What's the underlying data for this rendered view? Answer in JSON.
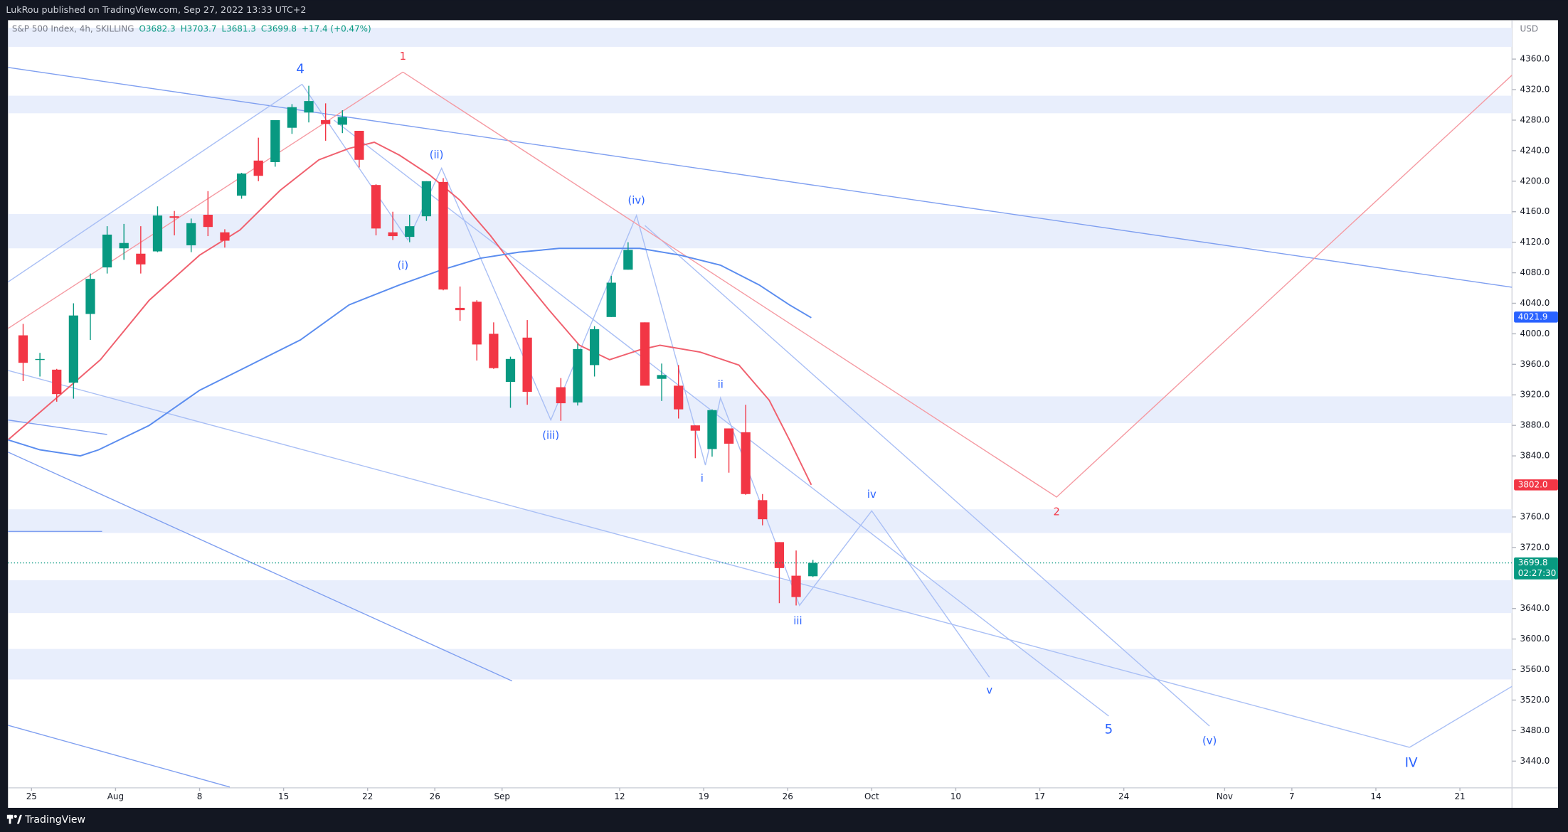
{
  "chart_data": {
    "type": "candlestick",
    "published": "LukRou published on TradingView.com, Sep 27, 2022 13:33 UTC+2",
    "symbol": "S&P 500 Index, 4h, SKILLING",
    "ohlc": [
      "O3682.3",
      "H3703.7",
      "L3681.3",
      "C3699.8"
    ],
    "change": "+17.4 (+0.47%)",
    "currency": "USD",
    "brand": "TradingView",
    "up_color": "#089981",
    "down_color": "#f23645",
    "xlim": [
      -1.4,
      88.1
    ],
    "ylim": [
      3405,
      4411
    ],
    "xticks": [
      {
        "value": 0,
        "label": "25"
      },
      {
        "value": 5,
        "label": "Aug"
      },
      {
        "value": 10,
        "label": "8"
      },
      {
        "value": 15,
        "label": "15"
      },
      {
        "value": 20,
        "label": "22"
      },
      {
        "value": 24,
        "label": "26"
      },
      {
        "value": 28,
        "label": "Sep"
      },
      {
        "value": 35,
        "label": "12"
      },
      {
        "value": 40,
        "label": "19"
      },
      {
        "value": 45,
        "label": "26"
      },
      {
        "value": 50,
        "label": "Oct"
      },
      {
        "value": 55,
        "label": "10"
      },
      {
        "value": 60,
        "label": "17"
      },
      {
        "value": 65,
        "label": "24"
      },
      {
        "value": 71,
        "label": "Nov"
      },
      {
        "value": 75,
        "label": "7"
      },
      {
        "value": 80,
        "label": "14"
      },
      {
        "value": 85,
        "label": "21"
      }
    ],
    "yticks": [
      {
        "value": 3440,
        "label": "3440.0"
      },
      {
        "value": 3480,
        "label": "3480.0"
      },
      {
        "value": 3520,
        "label": "3520.0"
      },
      {
        "value": 3560,
        "label": "3560.0"
      },
      {
        "value": 3600,
        "label": "3600.0"
      },
      {
        "value": 3640,
        "label": "3640.0"
      },
      {
        "value": 3720,
        "label": "3720.0"
      },
      {
        "value": 3760,
        "label": "3760.0"
      },
      {
        "value": 3840,
        "label": "3840.0"
      },
      {
        "value": 3880,
        "label": "3880.0"
      },
      {
        "value": 3920,
        "label": "3920.0"
      },
      {
        "value": 3960,
        "label": "3960.0"
      },
      {
        "value": 4000,
        "label": "4000.0"
      },
      {
        "value": 4040,
        "label": "4040.0"
      },
      {
        "value": 4080,
        "label": "4080.0"
      },
      {
        "value": 4120,
        "label": "4120.0"
      },
      {
        "value": 4160,
        "label": "4160.0"
      },
      {
        "value": 4200,
        "label": "4200.0"
      },
      {
        "value": 4240,
        "label": "4240.0"
      },
      {
        "value": 4280,
        "label": "4280.0"
      },
      {
        "value": 4320,
        "label": "4320.0"
      },
      {
        "value": 4360,
        "label": "4360.0"
      }
    ],
    "zones": [
      [
        4376,
        4401
      ],
      [
        4289,
        4312
      ],
      [
        4112,
        4157
      ],
      [
        3883,
        3918
      ],
      [
        3739,
        3770
      ],
      [
        3634,
        3677
      ],
      [
        3547,
        3587
      ]
    ],
    "zone_color": "#e8eefc",
    "x": [
      -0.5,
      0.5,
      1.5,
      2.5,
      3.5,
      4.5,
      5.5,
      6.5,
      7.5,
      8.5,
      9.5,
      10.5,
      11.5,
      12.5,
      13.5,
      14.5,
      15.5,
      16.5,
      17.5,
      18.5,
      19.5,
      20.5,
      21.5,
      22.5,
      23.5,
      24.5,
      25.5,
      26.5,
      27.5,
      28.5,
      29.5,
      31.5,
      32.5,
      33.5,
      34.5,
      35.5,
      36.5,
      37.5,
      38.5,
      39.5,
      40.5,
      41.5,
      42.5,
      43.5,
      44.5,
      45.5,
      46.5
    ],
    "open": [
      3998,
      3966,
      3953,
      3936,
      4026,
      4087,
      4112,
      4105,
      4108,
      4154,
      4116,
      4156,
      4133,
      4181,
      4227,
      4225,
      4270,
      4290,
      4280,
      4274,
      4266,
      4195,
      4133,
      4127,
      4154,
      4199,
      4034,
      4042,
      4000,
      3937,
      3995,
      3930,
      3910,
      3959,
      4022,
      4084,
      4015,
      3941,
      3932,
      3880,
      3849,
      3876,
      3871,
      3782,
      3727,
      3683,
      3682.3
    ],
    "high": [
      4013,
      3975,
      3954,
      4040,
      4079,
      4141,
      4144,
      4141,
      4167,
      4161,
      4151,
      4187,
      4137,
      4211,
      4257,
      4280,
      4301,
      4325,
      4302,
      4293,
      4266,
      4196,
      4160,
      4156,
      4200,
      4204,
      4062,
      4044,
      4015,
      3970,
      4018,
      3942,
      3987,
      4010,
      4076,
      4120,
      4015,
      3961,
      3959,
      3880,
      3901,
      3876,
      3907,
      3790,
      3727,
      3716,
      3703.7
    ],
    "low": [
      3938,
      3944,
      3911,
      3915,
      3992,
      4079,
      4097,
      4079,
      4107,
      4129,
      4107,
      4128,
      4113,
      4177,
      4200,
      4219,
      4262,
      4277,
      4253,
      4263,
      4218,
      4129,
      4123,
      4120,
      4148,
      4057,
      4017,
      3965,
      3954,
      3903,
      3907,
      3886,
      3906,
      3944,
      4022,
      4084,
      3933,
      3912,
      3889,
      3837,
      3839,
      3818,
      3789,
      3749,
      3647,
      3644,
      3681.3
    ],
    "close": [
      3962,
      3967,
      3921,
      4024,
      4072,
      4130,
      4119,
      4091,
      4155,
      4152,
      4145,
      4140,
      4122,
      4210,
      4207,
      4280,
      4297,
      4305,
      4275,
      4284,
      4228,
      4138,
      4128,
      4141,
      4200,
      4058,
      4031,
      3986,
      3955,
      3967,
      3924,
      3909,
      3980,
      4006,
      4067,
      4110,
      3932,
      3946,
      3901,
      3873,
      3900,
      3856,
      3790,
      3757,
      3693,
      3655,
      3699.8
    ],
    "series": [
      {
        "color": "#f0606e",
        "x": [
          -1.4,
          1.7,
          4.1,
          7.0,
          10.0,
          12.4,
          14.8,
          17.1,
          18.9,
          20.4,
          21.9,
          23.7,
          25.5,
          27.3,
          29.1,
          30.8,
          32.6,
          34.4,
          36.2,
          37.4,
          39.8,
          42.1,
          43.9,
          45.1,
          46.4
        ],
        "values": [
          3861,
          3920,
          3966,
          4044,
          4103,
          4136,
          4188,
          4228,
          4243,
          4251,
          4234,
          4208,
          4175,
          4129,
          4077,
          4031,
          3985,
          3966,
          3979,
          3985,
          3976,
          3959,
          3913,
          3861,
          3802
        ]
      },
      {
        "color": "#5b8def",
        "x": [
          -1.4,
          0.5,
          2.9,
          4.0,
          7.0,
          10.0,
          13.0,
          16.0,
          18.9,
          21.9,
          24.3,
          26.7,
          29.0,
          31.4,
          33.8,
          36.2,
          38.6,
          41.0,
          43.3,
          45.1,
          46.4
        ],
        "values": [
          3861,
          3848,
          3840,
          3848,
          3880,
          3926,
          3959,
          3992,
          4038,
          4064,
          4083,
          4099,
          4107,
          4112,
          4112,
          4112,
          4103,
          4090,
          4064,
          4038,
          4021
        ]
      }
    ],
    "drawings": [
      {
        "color": "#7f9ff0",
        "x": [
          -1.4,
          88.1
        ],
        "y": [
          4349,
          4061
        ]
      },
      {
        "color": "#a9bff5",
        "x": [
          -1.4,
          16.1
        ],
        "y": [
          4068,
          4327
        ]
      },
      {
        "color": "#a9bff5",
        "x": [
          -1.4,
          82.0
        ],
        "y": [
          3952,
          3458
        ]
      },
      {
        "color": "#a9bff5",
        "x": [
          82.0,
          88.1
        ],
        "y": [
          3458,
          3538
        ]
      },
      {
        "color": "#7f9ff0",
        "x": [
          -1.4,
          4.5
        ],
        "y": [
          3887,
          3868
        ]
      },
      {
        "color": "#7f9ff0",
        "x": [
          -1.4,
          28.6
        ],
        "y": [
          3845,
          3545
        ]
      },
      {
        "color": "#7f9ff0",
        "x": [
          -1.4,
          4.2
        ],
        "y": [
          3741,
          3741
        ]
      },
      {
        "color": "#7f9ff0",
        "x": [
          -1.4,
          11.8
        ],
        "y": [
          3487,
          3406
        ]
      },
      {
        "color": "#a9bff5",
        "x": [
          16.1,
          22.4,
          24.4,
          30.9,
          36.0,
          40.1,
          41.0,
          45.7,
          50.0,
          57.0
        ],
        "y": [
          4327,
          4123,
          4217,
          3887,
          4155,
          3828,
          3916,
          3644,
          3768,
          3550
        ]
      },
      {
        "color": "#a9bff5",
        "x": [
          18.0,
          64.1
        ],
        "y": [
          4280,
          3499
        ]
      },
      {
        "color": "#a9bff5",
        "x": [
          36.5,
          70.1
        ],
        "y": [
          4142,
          3486
        ]
      },
      {
        "color": "#f59aa2",
        "x": [
          -1.4,
          22.1
        ],
        "y": [
          4007,
          4343
        ]
      },
      {
        "color": "#f59aa2",
        "x": [
          22.1,
          61.0,
          88.1
        ],
        "y": [
          4343,
          3786,
          4339
        ]
      }
    ],
    "labels": [
      {
        "text": "4",
        "x": 16.0,
        "y": 4346,
        "color": "#2962ff",
        "size": "large"
      },
      {
        "text": "1",
        "x": 22.1,
        "y": 4363,
        "color": "#f23645"
      },
      {
        "text": "(ii)",
        "x": 24.1,
        "y": 4234,
        "color": "#2962ff"
      },
      {
        "text": "(i)",
        "x": 22.1,
        "y": 4089,
        "color": "#2962ff"
      },
      {
        "text": "(iv)",
        "x": 36.0,
        "y": 4174,
        "color": "#2962ff"
      },
      {
        "text": "(iii)",
        "x": 30.9,
        "y": 3866,
        "color": "#2962ff"
      },
      {
        "text": "ii",
        "x": 41.0,
        "y": 3933,
        "color": "#2962ff"
      },
      {
        "text": "i",
        "x": 39.9,
        "y": 3810,
        "color": "#2962ff"
      },
      {
        "text": "iv",
        "x": 50.0,
        "y": 3789,
        "color": "#2962ff"
      },
      {
        "text": "iii",
        "x": 45.6,
        "y": 3623,
        "color": "#2962ff"
      },
      {
        "text": "v",
        "x": 57.0,
        "y": 3532,
        "color": "#2962ff"
      },
      {
        "text": "2",
        "x": 61.0,
        "y": 3766,
        "color": "#f23645"
      },
      {
        "text": "5",
        "x": 64.1,
        "y": 3481,
        "color": "#2962ff",
        "size": "large"
      },
      {
        "text": "(v)",
        "x": 70.1,
        "y": 3466,
        "color": "#2962ff"
      },
      {
        "text": "IV",
        "x": 82.1,
        "y": 3437,
        "color": "#2962ff",
        "size": "large"
      }
    ],
    "price_labels": [
      {
        "value": 4021.9,
        "label": "4021.9",
        "color": "#2962ff"
      },
      {
        "value": 3802.0,
        "label": "3802.0",
        "color": "#f23645"
      },
      {
        "value": 3699.8,
        "label": "3699.8",
        "color": "#089981",
        "countdown": "02:27:30",
        "line": "dotted"
      }
    ]
  }
}
